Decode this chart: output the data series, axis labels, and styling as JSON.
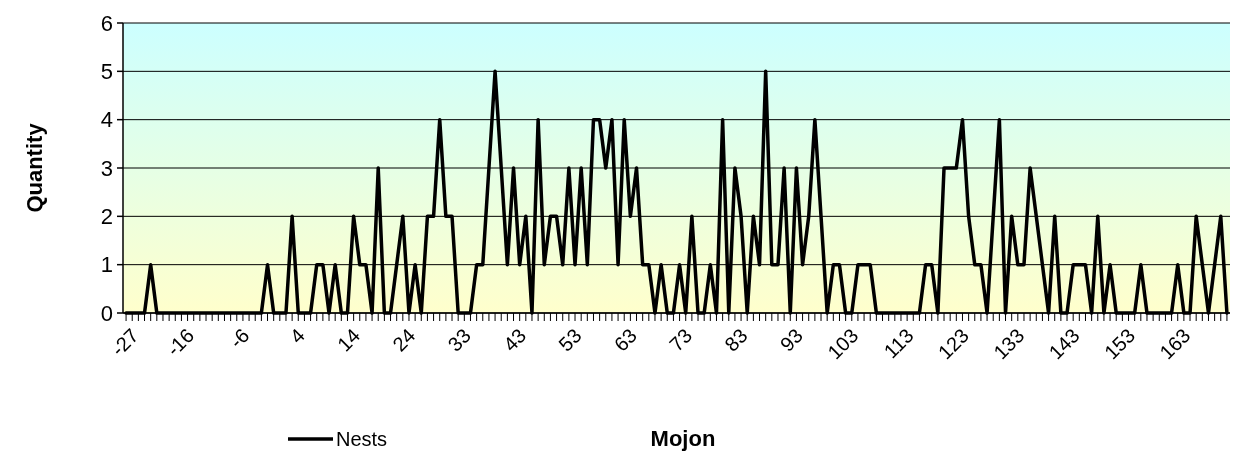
{
  "chart_data": {
    "type": "line",
    "xlabel": "Mojon",
    "ylabel": "Quantity",
    "categories": [
      "-27",
      null,
      null,
      null,
      null,
      null,
      null,
      null,
      null,
      "-16",
      null,
      null,
      null,
      null,
      null,
      null,
      null,
      null,
      "-6",
      null,
      null,
      null,
      null,
      null,
      null,
      null,
      null,
      "4",
      null,
      null,
      null,
      null,
      null,
      null,
      null,
      null,
      "14",
      null,
      null,
      null,
      null,
      null,
      null,
      null,
      null,
      "24",
      null,
      null,
      null,
      null,
      null,
      null,
      null,
      null,
      "33",
      null,
      null,
      null,
      null,
      null,
      null,
      null,
      null,
      "43",
      null,
      null,
      null,
      null,
      null,
      null,
      null,
      null,
      "53",
      null,
      null,
      null,
      null,
      null,
      null,
      null,
      null,
      "63",
      null,
      null,
      null,
      null,
      null,
      null,
      null,
      null,
      "73",
      null,
      null,
      null,
      null,
      null,
      null,
      null,
      null,
      "83",
      null,
      null,
      null,
      null,
      null,
      null,
      null,
      null,
      "93",
      null,
      null,
      null,
      null,
      null,
      null,
      null,
      null,
      "103",
      null,
      null,
      null,
      null,
      null,
      null,
      null,
      null,
      "113",
      null,
      null,
      null,
      null,
      null,
      null,
      null,
      null,
      "123",
      null,
      null,
      null,
      null,
      null,
      null,
      null,
      null,
      "133",
      null,
      null,
      null,
      null,
      null,
      null,
      null,
      null,
      "143",
      null,
      null,
      null,
      null,
      null,
      null,
      null,
      null,
      "153",
      null,
      null,
      null,
      null,
      null,
      null,
      null,
      null,
      "163",
      null,
      null,
      null,
      null,
      null,
      null,
      null,
      null
    ],
    "series": [
      {
        "name": "Nests",
        "color": "#000000",
        "values": [
          0,
          0,
          0,
          0,
          1,
          0,
          0,
          0,
          0,
          0,
          0,
          0,
          0,
          0,
          0,
          0,
          0,
          0,
          0,
          0,
          0,
          0,
          0,
          1,
          0,
          0,
          0,
          2,
          0,
          0,
          0,
          1,
          1,
          0,
          1,
          0,
          0,
          2,
          1,
          1,
          0,
          3,
          0,
          0,
          1,
          2,
          0,
          1,
          0,
          2,
          2,
          4,
          2,
          2,
          0,
          0,
          0,
          1,
          1,
          3,
          5,
          3,
          1,
          3,
          1,
          2,
          0,
          4,
          1,
          2,
          2,
          1,
          3,
          1,
          3,
          1,
          4,
          4,
          3,
          4,
          1,
          4,
          2,
          3,
          1,
          1,
          0,
          1,
          0,
          0,
          1,
          0,
          2,
          0,
          0,
          1,
          0,
          4,
          0,
          3,
          2,
          0,
          2,
          1,
          5,
          1,
          1,
          3,
          0,
          3,
          1,
          2,
          4,
          2,
          0,
          1,
          1,
          0,
          0,
          1,
          1,
          1,
          0,
          0,
          0,
          0,
          0,
          0,
          0,
          0,
          1,
          1,
          0,
          3,
          3,
          3,
          4,
          2,
          1,
          1,
          0,
          2,
          4,
          0,
          2,
          1,
          1,
          3,
          2,
          1,
          0,
          2,
          0,
          0,
          1,
          1,
          1,
          0,
          2,
          0,
          1,
          0,
          0,
          0,
          0,
          1,
          0,
          0,
          0,
          0,
          0,
          1,
          0,
          0,
          2,
          1,
          0,
          1,
          2,
          0
        ]
      }
    ],
    "ylim": [
      0,
      6
    ],
    "yticks": [
      0,
      1,
      2,
      3,
      4,
      5,
      6
    ],
    "grid": "y",
    "legend": "bottom"
  }
}
